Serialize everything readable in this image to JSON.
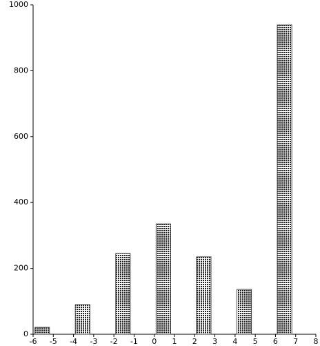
{
  "chart_data": {
    "type": "bar",
    "x": [
      -5.55,
      -3.55,
      -1.55,
      0.45,
      2.45,
      4.45,
      6.45
    ],
    "values": [
      21,
      90,
      245,
      335,
      235,
      136,
      939
    ],
    "color": "#444444",
    "xlim": [
      -6,
      8
    ],
    "xticks": [
      -6,
      -5,
      -4,
      -3,
      -2,
      -1,
      0,
      1,
      2,
      3,
      4,
      5,
      6,
      7,
      8
    ],
    "ylim": [
      0,
      1000
    ],
    "yticks": [
      0,
      200,
      400,
      600,
      800,
      1000
    ],
    "grid": false
  }
}
